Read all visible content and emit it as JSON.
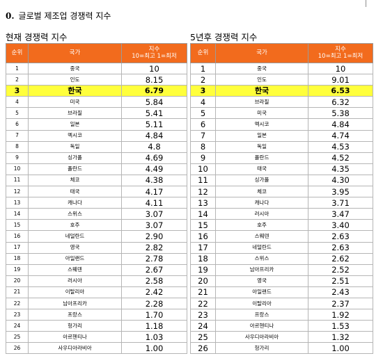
{
  "heading": {
    "number": "0.",
    "text": "글로벌 제조업 경쟁력 지수"
  },
  "current": {
    "title": "현재 경쟁력 지수",
    "headers": {
      "rank": "순위",
      "country": "국가",
      "score_line1": "지수",
      "score_line2": "10=최고 1=최저"
    },
    "rows": [
      {
        "rank": "1",
        "country": "중국",
        "score": "10"
      },
      {
        "rank": "2",
        "country": "인도",
        "score": "8.15"
      },
      {
        "rank": "3",
        "country": "한국",
        "score": "6.79",
        "highlight": true
      },
      {
        "rank": "4",
        "country": "미국",
        "score": "5.84"
      },
      {
        "rank": "5",
        "country": "브라질",
        "score": "5.41"
      },
      {
        "rank": "6",
        "country": "일본",
        "score": "5.11"
      },
      {
        "rank": "7",
        "country": "멕시코",
        "score": "4.84"
      },
      {
        "rank": "8",
        "country": "독일",
        "score": "4.8"
      },
      {
        "rank": "9",
        "country": "싱가폴",
        "score": "4.69"
      },
      {
        "rank": "10",
        "country": "폴란드",
        "score": "4.49"
      },
      {
        "rank": "11",
        "country": "체코",
        "score": "4.38"
      },
      {
        "rank": "12",
        "country": "태국",
        "score": "4.17"
      },
      {
        "rank": "13",
        "country": "캐나다",
        "score": "4.11"
      },
      {
        "rank": "14",
        "country": "스위스",
        "score": "3.07"
      },
      {
        "rank": "15",
        "country": "호주",
        "score": "3.07"
      },
      {
        "rank": "16",
        "country": "네덜란드",
        "score": "2.90"
      },
      {
        "rank": "17",
        "country": "영국",
        "score": "2.82"
      },
      {
        "rank": "18",
        "country": "아일랜드",
        "score": "2.78"
      },
      {
        "rank": "19",
        "country": "스웨덴",
        "score": "2.67"
      },
      {
        "rank": "20",
        "country": "러시아",
        "score": "2.58"
      },
      {
        "rank": "21",
        "country": "이탈리아",
        "score": "2.42"
      },
      {
        "rank": "22",
        "country": "남아프리카",
        "score": "2.28"
      },
      {
        "rank": "23",
        "country": "프랑스",
        "score": "1.70"
      },
      {
        "rank": "24",
        "country": "헝가리",
        "score": "1.18"
      },
      {
        "rank": "25",
        "country": "아르헨티나",
        "score": "1.03"
      },
      {
        "rank": "26",
        "country": "사우디아라비아",
        "score": "1.00"
      }
    ]
  },
  "future": {
    "title": "5년후 경쟁력 지수",
    "headers": {
      "rank": "순위",
      "country": "국가",
      "score_line1": "지수",
      "score_line2": "10=최고 1=최저"
    },
    "rows": [
      {
        "rank": "1",
        "country": "중국",
        "score": "10"
      },
      {
        "rank": "2",
        "country": "인도",
        "score": "9.01"
      },
      {
        "rank": "3",
        "country": "한국",
        "score": "6.53",
        "highlight": true
      },
      {
        "rank": "4",
        "country": "브라질",
        "score": "6.32"
      },
      {
        "rank": "5",
        "country": "미국",
        "score": "5.38"
      },
      {
        "rank": "6",
        "country": "멕시코",
        "score": "4.84"
      },
      {
        "rank": "7",
        "country": "일본",
        "score": "4.74"
      },
      {
        "rank": "8",
        "country": "독일",
        "score": "4.53"
      },
      {
        "rank": "9",
        "country": "폴란드",
        "score": "4.52"
      },
      {
        "rank": "10",
        "country": "태국",
        "score": "4.35"
      },
      {
        "rank": "11",
        "country": "싱가폴",
        "score": "4.30"
      },
      {
        "rank": "12",
        "country": "체코",
        "score": "3.95"
      },
      {
        "rank": "13",
        "country": "캐나다",
        "score": "3.71"
      },
      {
        "rank": "14",
        "country": "러시아",
        "score": "3.47"
      },
      {
        "rank": "15",
        "country": "호주",
        "score": "3.40"
      },
      {
        "rank": "16",
        "country": "스웨덴",
        "score": "2.63"
      },
      {
        "rank": "17",
        "country": "네덜란드",
        "score": "2.63"
      },
      {
        "rank": "18",
        "country": "스위스",
        "score": "2.62"
      },
      {
        "rank": "19",
        "country": "남아프리카",
        "score": "2.52"
      },
      {
        "rank": "20",
        "country": "영국",
        "score": "2.51"
      },
      {
        "rank": "21",
        "country": "아일랜드",
        "score": "2.43"
      },
      {
        "rank": "22",
        "country": "이탈리아",
        "score": "2.37"
      },
      {
        "rank": "23",
        "country": "프랑스",
        "score": "1.92"
      },
      {
        "rank": "24",
        "country": "아르헨티나",
        "score": "1.53"
      },
      {
        "rank": "25",
        "country": "사우디아라비아",
        "score": "1.32"
      },
      {
        "rank": "26",
        "country": "헝가리",
        "score": "1.00"
      }
    ]
  },
  "colors": {
    "header_bg": "#f26b1d",
    "highlight_bg": "#ffff3c"
  }
}
